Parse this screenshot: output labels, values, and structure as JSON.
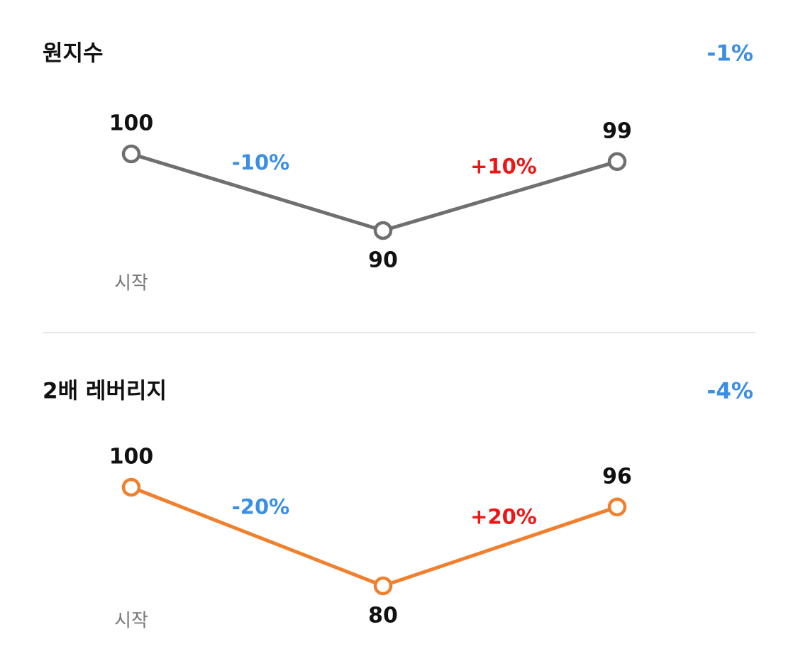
{
  "chart_data": [
    {
      "type": "line",
      "title": "원지수",
      "summary": {
        "text": "-1%",
        "color": "#3a8ee6"
      },
      "categories": [
        "시작",
        null,
        null
      ],
      "values": [
        100,
        90,
        99
      ],
      "color": "#6f6f6f",
      "ylim": [
        90,
        100
      ],
      "annotations": [
        {
          "text": "-10%",
          "color": "#3a8ee6"
        },
        {
          "text": "+10%",
          "color": "#f01515"
        }
      ]
    },
    {
      "type": "line",
      "title": "2배 레버리지",
      "summary": {
        "text": "-4%",
        "color": "#3a8ee6"
      },
      "categories": [
        "시작",
        null,
        null
      ],
      "values": [
        100,
        80,
        96
      ],
      "color": "#f0802e",
      "ylim": [
        80,
        100
      ],
      "annotations": [
        {
          "text": "-20%",
          "color": "#3a8ee6"
        },
        {
          "text": "+20%",
          "color": "#f01515"
        }
      ]
    }
  ]
}
